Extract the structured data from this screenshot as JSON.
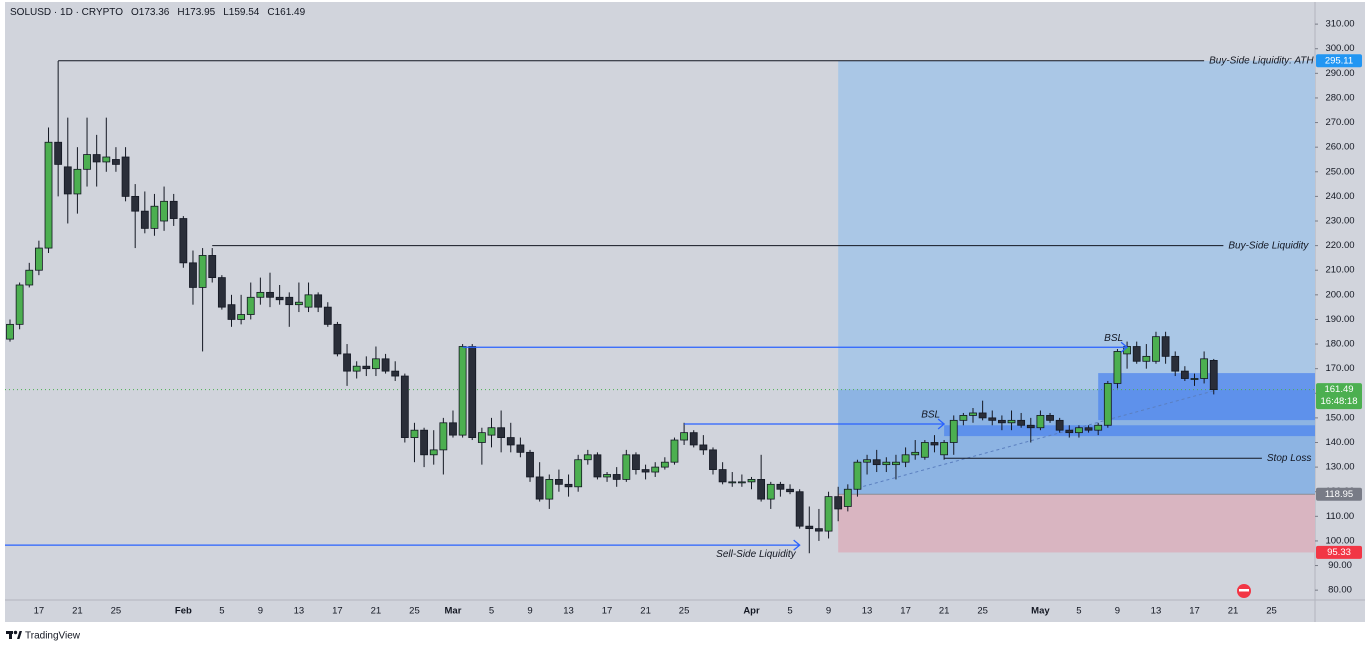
{
  "chart_data": {
    "type": "candlestick",
    "header": {
      "symbol": "SOLUSD · 1D · CRYPTO",
      "fields": [
        {
          "prefix": "O",
          "value": 173.36
        },
        {
          "prefix": "H",
          "value": 173.95
        },
        {
          "prefix": "L",
          "value": 159.54
        },
        {
          "prefix": "C",
          "value": 161.49
        }
      ]
    },
    "categories": [
      null,
      null,
      null,
      "17",
      null,
      null,
      null,
      "21",
      null,
      null,
      null,
      "25",
      null,
      null,
      null,
      null,
      null,
      null,
      "Feb",
      null,
      null,
      null,
      "5",
      null,
      null,
      null,
      "9",
      null,
      null,
      null,
      "13",
      null,
      null,
      null,
      "17",
      null,
      null,
      null,
      "21",
      null,
      null,
      null,
      "25",
      null,
      null,
      null,
      "Mar",
      null,
      null,
      null,
      "5",
      null,
      null,
      null,
      "9",
      null,
      null,
      null,
      "13",
      null,
      null,
      null,
      "17",
      null,
      null,
      null,
      "21",
      null,
      null,
      null,
      "25",
      null,
      null,
      null,
      null,
      null,
      null,
      "Apr",
      null,
      null,
      null,
      "5",
      null,
      null,
      null,
      "9",
      null,
      null,
      null,
      "13",
      null,
      null,
      null,
      "17",
      null,
      null,
      null,
      "21",
      null,
      null,
      null,
      "25",
      null,
      null,
      null,
      null,
      null,
      "May",
      null,
      null,
      null,
      "5",
      null,
      null,
      null,
      "9",
      null,
      null,
      null,
      "13",
      null,
      null,
      null,
      "17",
      null,
      null,
      null,
      "21",
      null,
      null,
      null,
      "25",
      null,
      null,
      null,
      null
    ],
    "open": [
      182,
      188,
      204,
      210,
      219,
      262,
      252,
      241,
      251,
      257,
      254,
      255,
      256,
      240,
      234,
      227,
      230,
      238,
      231,
      213,
      203,
      216,
      207,
      196,
      190,
      192,
      199,
      201,
      199,
      199,
      196,
      195,
      200,
      195,
      188,
      176,
      169,
      171,
      170,
      174,
      169,
      167,
      142,
      145,
      135,
      137,
      148,
      143,
      179,
      140,
      143,
      146,
      142,
      139,
      136,
      126,
      117,
      125,
      123,
      122,
      133,
      135,
      126,
      127,
      125,
      135,
      129,
      128,
      130,
      132,
      141,
      144,
      139,
      137,
      129,
      124,
      124,
      124,
      125,
      117,
      123,
      121,
      120,
      106,
      105,
      104,
      118,
      114,
      121,
      132,
      133,
      131,
      131,
      132,
      135,
      134,
      140,
      135,
      140,
      149,
      151,
      152,
      150,
      149,
      148,
      149,
      147,
      146,
      151,
      149,
      145,
      144,
      146,
      145,
      147,
      164,
      176,
      179,
      173,
      173,
      183,
      175,
      169,
      166,
      166,
      173.36,
      null,
      null,
      null,
      null,
      null,
      null,
      null,
      null,
      null,
      null
    ],
    "high": [
      190,
      205,
      213,
      222,
      268,
      295,
      272,
      260,
      272,
      265,
      272,
      260,
      260,
      245,
      242,
      241,
      244,
      241,
      232,
      218,
      219,
      219,
      208,
      200,
      200,
      205,
      207,
      209,
      204,
      201,
      205,
      205,
      201,
      197,
      189,
      180,
      173,
      175,
      179,
      176,
      173,
      168,
      148,
      146,
      145,
      150,
      153,
      180,
      180,
      146,
      150,
      153,
      148,
      142,
      137,
      132,
      127,
      129,
      127,
      135,
      137,
      136,
      128,
      130,
      137,
      136,
      131,
      132,
      134,
      142,
      148,
      145,
      143,
      138,
      132,
      128,
      127,
      126,
      135,
      124,
      124,
      123,
      121,
      114,
      113,
      120,
      122,
      123,
      133,
      135,
      137,
      134,
      135,
      138,
      141,
      141,
      143,
      141,
      151,
      152,
      154,
      157,
      153,
      151,
      153,
      152,
      150,
      153,
      152,
      150,
      147,
      147,
      147,
      148,
      165,
      178,
      181,
      181,
      180,
      185,
      185,
      177,
      171,
      168,
      177,
      173.95,
      null,
      null,
      null,
      null,
      null,
      null,
      null,
      null,
      null,
      null
    ],
    "low": [
      181,
      186,
      203,
      208,
      217,
      240,
      229,
      233,
      244,
      244,
      250,
      250,
      238,
      219,
      225,
      224,
      226,
      228,
      211,
      196,
      177,
      205,
      194,
      187,
      188,
      190,
      196,
      195,
      196,
      187,
      193,
      193,
      193,
      187,
      175,
      163,
      166,
      167,
      167,
      168,
      165,
      140,
      132,
      130,
      131,
      127,
      142,
      142,
      141,
      131,
      138,
      136,
      136,
      134,
      124,
      116,
      113,
      120,
      118,
      120,
      131,
      125,
      124,
      122,
      124,
      127,
      125,
      126,
      129,
      131,
      139,
      138,
      135,
      127,
      123,
      122,
      122,
      121,
      116,
      113,
      118,
      119,
      105,
      95,
      100,
      101,
      108,
      112,
      118,
      127,
      128,
      128,
      125,
      130,
      133,
      133,
      136,
      133,
      135,
      147,
      148,
      149,
      147,
      145,
      145,
      146,
      140,
      145,
      148,
      144,
      142,
      142,
      144,
      143,
      146,
      162,
      170,
      172,
      170,
      172,
      172,
      167,
      165,
      163,
      164,
      159.54,
      null,
      null,
      null,
      null,
      null,
      null,
      null,
      null,
      null,
      null
    ],
    "close": [
      188,
      204,
      210,
      219,
      262,
      253,
      241,
      251,
      257,
      254,
      256,
      253,
      240,
      234,
      227,
      236,
      238,
      231,
      213,
      203,
      216,
      207,
      195,
      190,
      192,
      199,
      201,
      199,
      198,
      196,
      197,
      200,
      195,
      188,
      176,
      169,
      171,
      170,
      174,
      169,
      167,
      142,
      145,
      135,
      137,
      148,
      143,
      179,
      142,
      144,
      146,
      142,
      139,
      136,
      126,
      117,
      125,
      123,
      122,
      133,
      135,
      126,
      127,
      125,
      135,
      129,
      128,
      130,
      132,
      141,
      144,
      139,
      137,
      129,
      124,
      124,
      124,
      125,
      117,
      123,
      121,
      120,
      106,
      105,
      104,
      118,
      113,
      121,
      132,
      133,
      131,
      132,
      132,
      135,
      136,
      140,
      139,
      140,
      149,
      151,
      152,
      150,
      149,
      148,
      149,
      147,
      146,
      151,
      149,
      145,
      144,
      146,
      145,
      147,
      164,
      177,
      179,
      173,
      175,
      183,
      175,
      169,
      166,
      166,
      174,
      161.49,
      null,
      null,
      null,
      null,
      null,
      null,
      null,
      null,
      null,
      null
    ],
    "up_color": "#4caf50",
    "down_color": "#2a2e39",
    "ylim": [
      76,
      319.8
    ],
    "yticks": [
      {
        "value": 80,
        "label": "80.00"
      },
      {
        "value": 90,
        "label": "90.00"
      },
      {
        "value": 100,
        "label": "100.00"
      },
      {
        "value": 110,
        "label": "110.00"
      },
      {
        "value": 120,
        "label": "120.00"
      },
      {
        "value": 130,
        "label": "130.00"
      },
      {
        "value": 140,
        "label": "140.00"
      },
      {
        "value": 150,
        "label": "150.00"
      },
      {
        "value": 160,
        "label": "160.00"
      },
      {
        "value": 170,
        "label": "170.00"
      },
      {
        "value": 180,
        "label": "180.00"
      },
      {
        "value": 190,
        "label": "190.00"
      },
      {
        "value": 200,
        "label": "200.00"
      },
      {
        "value": 210,
        "label": "210.00"
      },
      {
        "value": 220,
        "label": "220.00"
      },
      {
        "value": 230,
        "label": "230.00"
      },
      {
        "value": 240,
        "label": "240.00"
      },
      {
        "value": 250,
        "label": "250.00"
      },
      {
        "value": 260,
        "label": "260.00"
      },
      {
        "value": 270,
        "label": "270.00"
      },
      {
        "value": 280,
        "label": "280.00"
      },
      {
        "value": 290,
        "label": "290.00"
      },
      {
        "value": 300,
        "label": "300.00"
      },
      {
        "value": 310,
        "label": "310.00"
      }
    ],
    "position": {
      "start": 86,
      "target": 295.11,
      "entry": 118.95,
      "stop": 95.33,
      "target_color": "#aac7e6",
      "progress_color": "#8db4e3",
      "stop_color": "#d9b5c1",
      "target_tag_color": "#2196f3",
      "entry_tag_color": "#787b86",
      "stop_tag_color": "#f23645",
      "close_tag_color": "#4caf50"
    },
    "countdown": "16:48:18",
    "zones": [
      {
        "from": 113,
        "top": 168.2,
        "bottom": 149.1
      },
      {
        "from": 97,
        "top": 147,
        "bottom": 142.6
      }
    ],
    "zone_color": "#4f86ee",
    "levels": [
      {
        "label": "Buy-Side Liquidity: ATH",
        "value": 295.11,
        "from": 5,
        "to": 124,
        "color": "#131722"
      },
      {
        "label": "Buy-Side Liquidity",
        "value": 220,
        "from": 21,
        "to": 126,
        "color": "#131722"
      },
      {
        "label": "Stop Loss",
        "value": 133.6,
        "from": 97,
        "to": 130,
        "color": "#131722"
      }
    ],
    "arrows": [
      {
        "label": "BSL",
        "value": 178.7,
        "from": 47,
        "to": 116,
        "color": "#2962ff",
        "label_side": "above"
      },
      {
        "label": "BSL",
        "value": 147.5,
        "from": 70,
        "to": 97,
        "color": "#2962ff",
        "label_side": "above"
      },
      {
        "label": "Sell-Side Liquidity",
        "value": 98.3,
        "from": 0,
        "to": 82,
        "color": "#2962ff",
        "label_side": "below"
      }
    ],
    "trendline": {
      "x": [
        88,
        125
      ],
      "y": [
        121.5,
        161
      ],
      "color": "#5b7fbf"
    },
    "branding": "TradingView"
  }
}
